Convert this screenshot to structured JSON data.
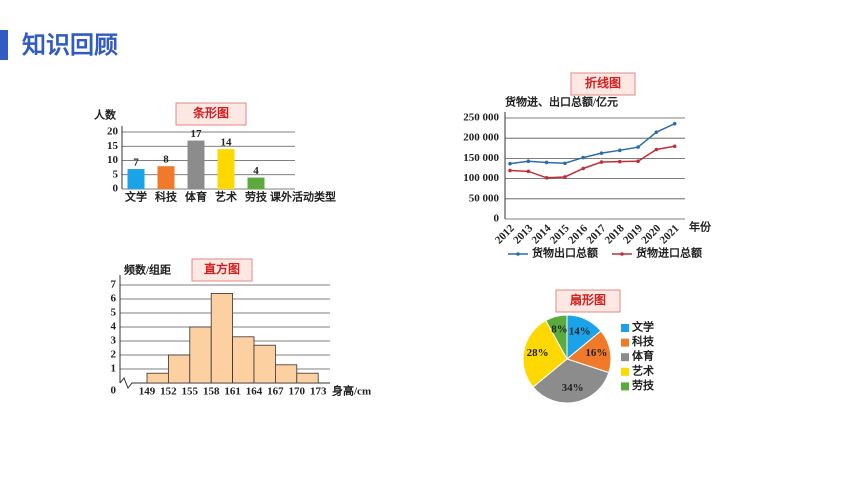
{
  "title": "知识回顾",
  "chart_data": [
    {
      "type": "bar",
      "title": "条形图",
      "y_label": "人数",
      "x_label": "课外活动类型",
      "categories": [
        "文学",
        "科技",
        "体育",
        "艺术",
        "劳技"
      ],
      "values": [
        7,
        8,
        17,
        14,
        4
      ],
      "colors": [
        "#1aa3e8",
        "#f07a2a",
        "#8c8c8c",
        "#ffd800",
        "#5aab3c"
      ],
      "ylim": [
        0,
        20
      ],
      "yticks": [
        0,
        5,
        10,
        15,
        20
      ],
      "grid": true
    },
    {
      "type": "line",
      "title": "折线图",
      "y_label": "货物进、出口总额/亿元",
      "x_label": "年份",
      "categories": [
        "2012",
        "2013",
        "2014",
        "2015",
        "2016",
        "2017",
        "2018",
        "2019",
        "2020",
        "2021"
      ],
      "series": [
        {
          "name": "货物出口总额",
          "color": "#2a6fa8",
          "values": [
            137000,
            143000,
            140000,
            138000,
            152000,
            163000,
            170000,
            178000,
            215000,
            236000
          ]
        },
        {
          "name": "货物进口总额",
          "color": "#c0303a",
          "values": [
            120000,
            118000,
            102000,
            104000,
            125000,
            141000,
            142000,
            143000,
            172000,
            180000
          ]
        }
      ],
      "ylim": [
        0,
        250000
      ],
      "yticks": [
        {
          "value": 0,
          "label": "0"
        },
        {
          "value": 50000,
          "label": "50 000"
        },
        {
          "value": 100000,
          "label": "100 000"
        },
        {
          "value": 150000,
          "label": "150 000"
        },
        {
          "value": 200000,
          "label": "200 000"
        },
        {
          "value": 250000,
          "label": "250 000"
        }
      ],
      "grid": true
    },
    {
      "type": "histogram",
      "title": "直方图",
      "y_label": "频数/组距",
      "x_label": "身高/cm",
      "bins": [
        149,
        152,
        155,
        158,
        161,
        164,
        167,
        170,
        173
      ],
      "values": [
        0.7,
        2,
        4,
        6.4,
        3.3,
        2.7,
        1.3,
        0.7
      ],
      "color": "#fdd0a2",
      "ylim": [
        0,
        7
      ],
      "yticks": [
        0,
        1,
        2,
        3,
        4,
        5,
        6,
        7
      ],
      "grid": true
    },
    {
      "type": "pie",
      "title": "扇形图",
      "categories": [
        "文学",
        "科技",
        "体育",
        "艺术",
        "劳技"
      ],
      "values": [
        14,
        16,
        34,
        28,
        8
      ],
      "value_labels": [
        "14%",
        "16%",
        "34%",
        "28%",
        "8%"
      ],
      "colors": [
        "#1aa3e8",
        "#f07a2a",
        "#8c8c8c",
        "#ffd800",
        "#5aab3c"
      ]
    }
  ]
}
